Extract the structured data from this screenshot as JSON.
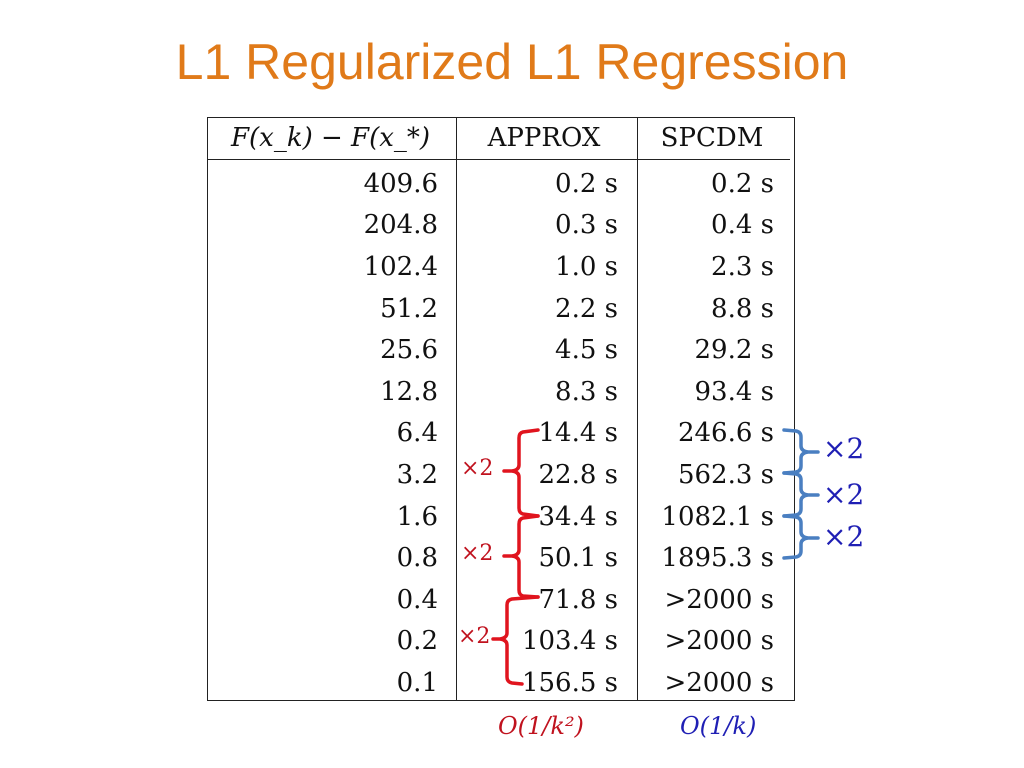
{
  "slide": {
    "title": "L1 Regularized L1 Regression"
  },
  "table": {
    "headers": [
      "F(x_k) − F(x_*)",
      "APPROX",
      "SPCDM"
    ],
    "rows": [
      [
        "409.6",
        "0.2 s",
        "0.2 s"
      ],
      [
        "204.8",
        "0.3 s",
        "0.4 s"
      ],
      [
        "102.4",
        "1.0 s",
        "2.3 s"
      ],
      [
        "51.2",
        "2.2 s",
        "8.8 s"
      ],
      [
        "25.6",
        "4.5 s",
        "29.2 s"
      ],
      [
        "12.8",
        "8.3 s",
        "93.4 s"
      ],
      [
        "6.4",
        "14.4 s",
        "246.6 s"
      ],
      [
        "3.2",
        "22.8 s",
        "562.3 s"
      ],
      [
        "1.6",
        "34.4 s",
        "1082.1 s"
      ],
      [
        "0.8",
        "50.1 s",
        "1895.3 s"
      ],
      [
        "0.4",
        "71.8 s",
        ">2000 s"
      ],
      [
        "0.2",
        "103.4 s",
        ">2000 s"
      ],
      [
        "0.1",
        "156.5 s",
        ">2000 s"
      ]
    ]
  },
  "annotations": {
    "approx_factor_labels": [
      "×2",
      "×2",
      "×2"
    ],
    "spcdm_factor_labels": [
      "×2",
      "×2",
      "×2"
    ],
    "approx_rate": "O(1/k²)",
    "spcdm_rate": "O(1/k)",
    "colors": {
      "title": "#e07a19",
      "approx": "#c0121e",
      "spcdm": "#1f1fb4",
      "bracket_blue": "#4a7fc1"
    }
  }
}
